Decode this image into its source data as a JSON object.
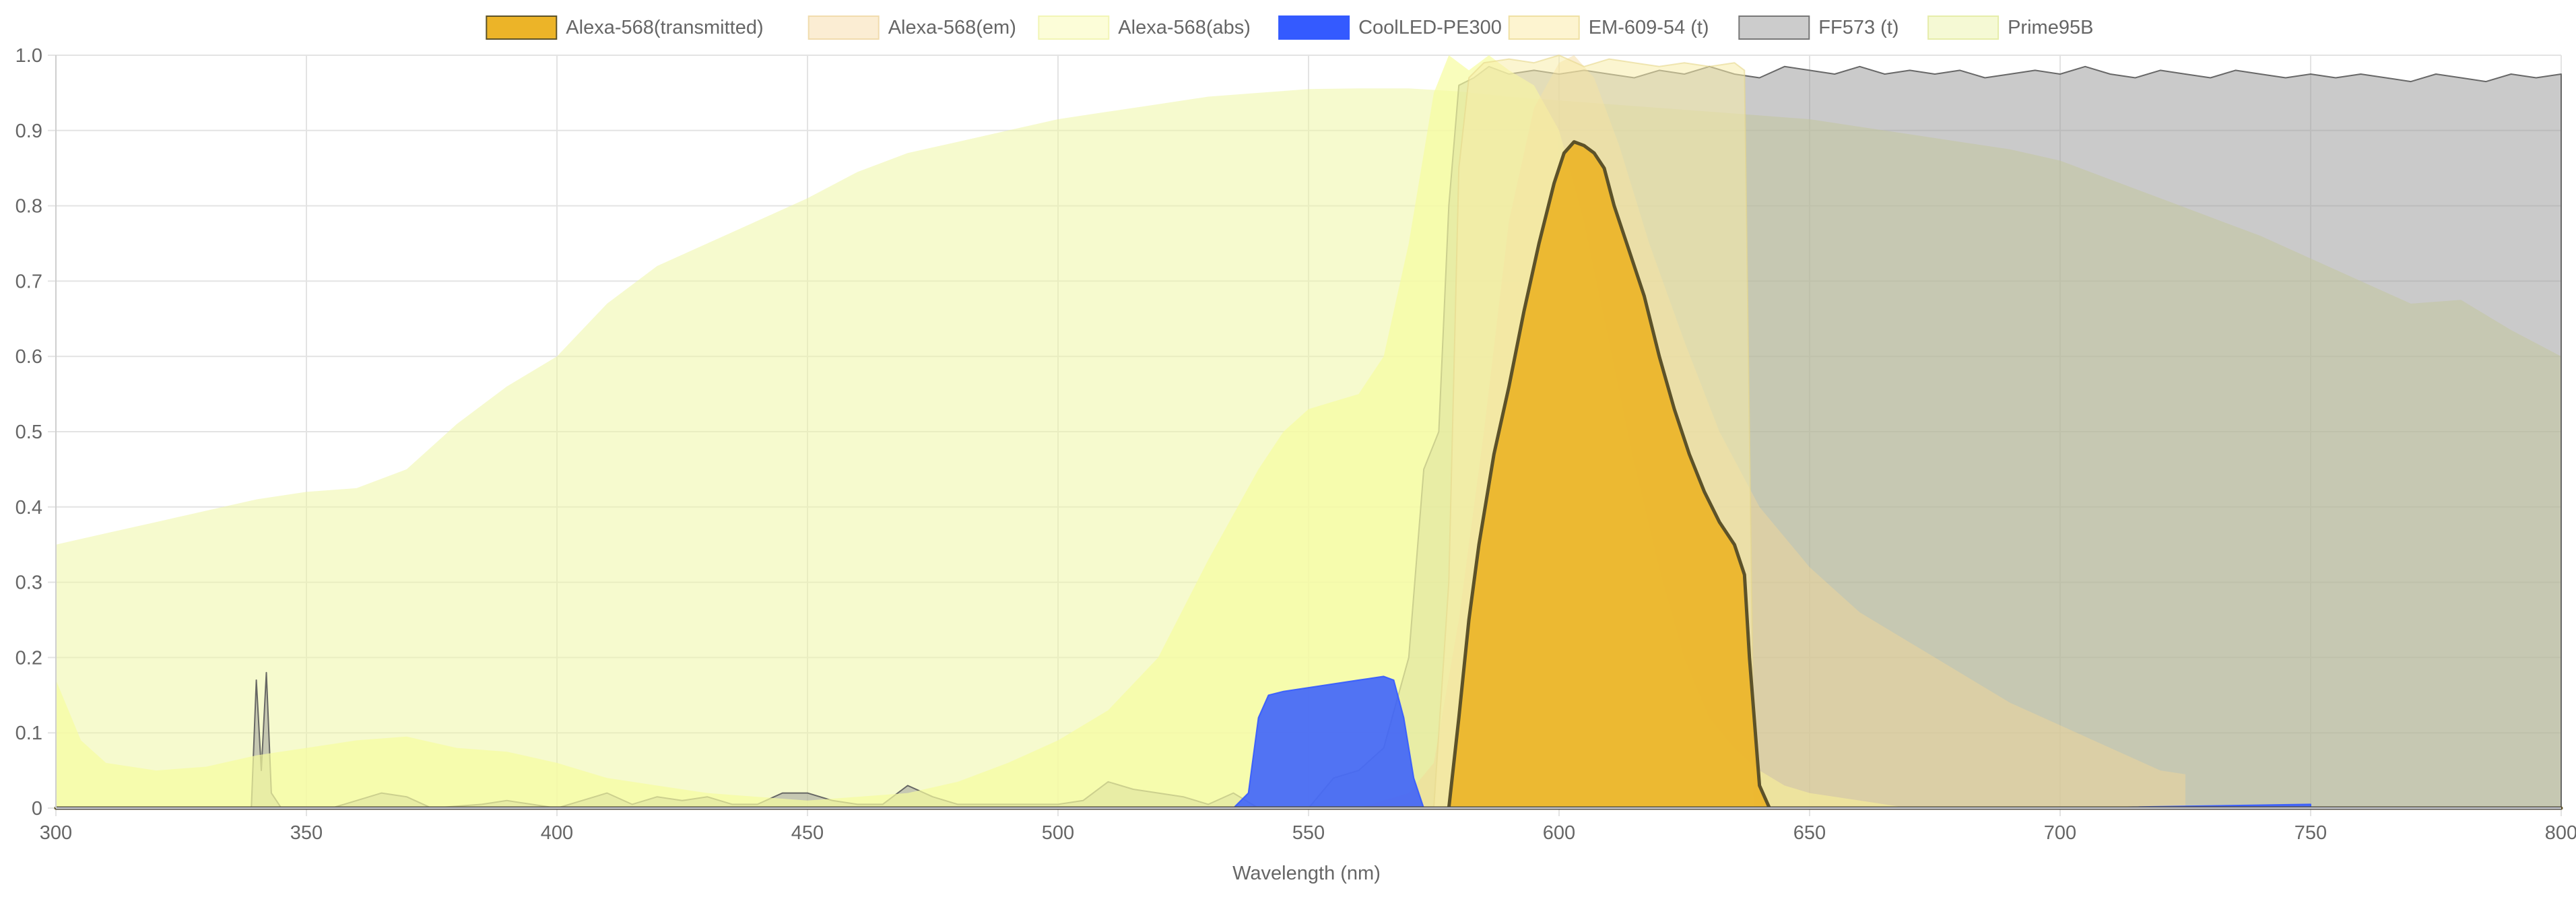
{
  "chart_data": {
    "type": "area",
    "xlabel": "Wavelength (nm)",
    "ylabel": "",
    "xlim": [
      300,
      800
    ],
    "ylim": [
      0,
      1
    ],
    "x_ticks": [
      "300",
      "350",
      "400",
      "450",
      "500",
      "550",
      "600",
      "650",
      "700",
      "750",
      "800"
    ],
    "y_ticks": [
      "0",
      "0.1",
      "0.2",
      "0.3",
      "0.4",
      "0.5",
      "0.6",
      "0.7",
      "0.8",
      "0.9",
      "1.0"
    ],
    "grid": true,
    "legend_position": "top",
    "series": [
      {
        "name": "Prime95B",
        "fill": "rgba(238,246,166,0.55)",
        "stroke": "none",
        "points": [
          [
            300,
            0.35
          ],
          [
            310,
            0.365
          ],
          [
            320,
            0.38
          ],
          [
            330,
            0.395
          ],
          [
            340,
            0.41
          ],
          [
            350,
            0.42
          ],
          [
            360,
            0.425
          ],
          [
            370,
            0.45
          ],
          [
            380,
            0.51
          ],
          [
            390,
            0.56
          ],
          [
            400,
            0.6
          ],
          [
            410,
            0.67
          ],
          [
            420,
            0.72
          ],
          [
            430,
            0.75
          ],
          [
            440,
            0.78
          ],
          [
            450,
            0.81
          ],
          [
            460,
            0.845
          ],
          [
            470,
            0.87
          ],
          [
            480,
            0.885
          ],
          [
            490,
            0.9
          ],
          [
            500,
            0.915
          ],
          [
            510,
            0.925
          ],
          [
            520,
            0.935
          ],
          [
            530,
            0.945
          ],
          [
            540,
            0.95
          ],
          [
            550,
            0.955
          ],
          [
            560,
            0.956
          ],
          [
            570,
            0.956
          ],
          [
            580,
            0.952
          ],
          [
            590,
            0.945
          ],
          [
            600,
            0.94
          ],
          [
            610,
            0.935
          ],
          [
            620,
            0.93
          ],
          [
            630,
            0.925
          ],
          [
            640,
            0.92
          ],
          [
            650,
            0.915
          ],
          [
            660,
            0.905
          ],
          [
            670,
            0.895
          ],
          [
            680,
            0.885
          ],
          [
            690,
            0.875
          ],
          [
            700,
            0.86
          ],
          [
            710,
            0.835
          ],
          [
            720,
            0.81
          ],
          [
            730,
            0.785
          ],
          [
            740,
            0.76
          ],
          [
            750,
            0.73
          ],
          [
            760,
            0.7
          ],
          [
            770,
            0.67
          ],
          [
            780,
            0.675
          ],
          [
            790,
            0.635
          ],
          [
            800,
            0.6
          ]
        ]
      },
      {
        "name": "FF573 (t)",
        "fill": "rgba(150,150,150,0.5)",
        "stroke": "rgba(90,90,90,0.9)",
        "points": [
          [
            300,
            0
          ],
          [
            339,
            0
          ],
          [
            340,
            0.17
          ],
          [
            341,
            0.05
          ],
          [
            342,
            0.18
          ],
          [
            343,
            0.02
          ],
          [
            345,
            0
          ],
          [
            355,
            0
          ],
          [
            360,
            0.01
          ],
          [
            365,
            0.02
          ],
          [
            370,
            0.015
          ],
          [
            375,
            0
          ],
          [
            385,
            0.005
          ],
          [
            390,
            0.01
          ],
          [
            395,
            0.005
          ],
          [
            400,
            0
          ],
          [
            405,
            0.01
          ],
          [
            410,
            0.02
          ],
          [
            415,
            0.005
          ],
          [
            420,
            0.015
          ],
          [
            425,
            0.01
          ],
          [
            430,
            0.015
          ],
          [
            435,
            0.005
          ],
          [
            440,
            0.005
          ],
          [
            445,
            0.02
          ],
          [
            450,
            0.02
          ],
          [
            455,
            0.01
          ],
          [
            460,
            0.005
          ],
          [
            465,
            0.005
          ],
          [
            470,
            0.03
          ],
          [
            475,
            0.015
          ],
          [
            480,
            0.005
          ],
          [
            490,
            0.005
          ],
          [
            500,
            0.005
          ],
          [
            505,
            0.01
          ],
          [
            510,
            0.035
          ],
          [
            515,
            0.025
          ],
          [
            520,
            0.02
          ],
          [
            525,
            0.015
          ],
          [
            530,
            0.005
          ],
          [
            535,
            0.02
          ],
          [
            540,
            0
          ],
          [
            550,
            0
          ],
          [
            555,
            0.04
          ],
          [
            560,
            0.05
          ],
          [
            565,
            0.08
          ],
          [
            570,
            0.2
          ],
          [
            573,
            0.45
          ],
          [
            576,
            0.5
          ],
          [
            578,
            0.8
          ],
          [
            580,
            0.96
          ],
          [
            583,
            0.97
          ],
          [
            586,
            0.985
          ],
          [
            590,
            0.975
          ],
          [
            595,
            0.98
          ],
          [
            600,
            0.975
          ],
          [
            605,
            0.98
          ],
          [
            610,
            0.975
          ],
          [
            615,
            0.97
          ],
          [
            620,
            0.98
          ],
          [
            625,
            0.975
          ],
          [
            630,
            0.985
          ],
          [
            635,
            0.975
          ],
          [
            640,
            0.97
          ],
          [
            645,
            0.985
          ],
          [
            650,
            0.98
          ],
          [
            655,
            0.975
          ],
          [
            660,
            0.985
          ],
          [
            665,
            0.975
          ],
          [
            670,
            0.98
          ],
          [
            675,
            0.975
          ],
          [
            680,
            0.98
          ],
          [
            685,
            0.97
          ],
          [
            690,
            0.975
          ],
          [
            695,
            0.98
          ],
          [
            700,
            0.975
          ],
          [
            705,
            0.985
          ],
          [
            710,
            0.975
          ],
          [
            715,
            0.97
          ],
          [
            720,
            0.98
          ],
          [
            725,
            0.975
          ],
          [
            730,
            0.97
          ],
          [
            735,
            0.98
          ],
          [
            740,
            0.975
          ],
          [
            745,
            0.97
          ],
          [
            750,
            0.975
          ],
          [
            755,
            0.97
          ],
          [
            760,
            0.975
          ],
          [
            765,
            0.97
          ],
          [
            770,
            0.965
          ],
          [
            775,
            0.975
          ],
          [
            780,
            0.97
          ],
          [
            785,
            0.965
          ],
          [
            790,
            0.975
          ],
          [
            795,
            0.97
          ],
          [
            800,
            0.975
          ]
        ]
      },
      {
        "name": "Alexa-568(abs)",
        "fill": "rgba(247,252,160,0.7)",
        "stroke": "none",
        "points": [
          [
            300,
            0.17
          ],
          [
            305,
            0.09
          ],
          [
            310,
            0.06
          ],
          [
            320,
            0.05
          ],
          [
            330,
            0.055
          ],
          [
            340,
            0.07
          ],
          [
            350,
            0.08
          ],
          [
            360,
            0.09
          ],
          [
            370,
            0.095
          ],
          [
            380,
            0.08
          ],
          [
            390,
            0.075
          ],
          [
            400,
            0.06
          ],
          [
            410,
            0.04
          ],
          [
            420,
            0.03
          ],
          [
            430,
            0.02
          ],
          [
            440,
            0.015
          ],
          [
            450,
            0.01
          ],
          [
            460,
            0.015
          ],
          [
            470,
            0.02
          ],
          [
            480,
            0.035
          ],
          [
            490,
            0.06
          ],
          [
            500,
            0.09
          ],
          [
            510,
            0.13
          ],
          [
            520,
            0.2
          ],
          [
            530,
            0.33
          ],
          [
            540,
            0.45
          ],
          [
            545,
            0.5
          ],
          [
            550,
            0.53
          ],
          [
            555,
            0.54
          ],
          [
            560,
            0.55
          ],
          [
            565,
            0.6
          ],
          [
            570,
            0.75
          ],
          [
            575,
            0.95
          ],
          [
            578,
            1.0
          ],
          [
            582,
            0.98
          ],
          [
            586,
            1.0
          ],
          [
            590,
            0.98
          ],
          [
            595,
            0.96
          ],
          [
            600,
            0.9
          ],
          [
            605,
            0.78
          ],
          [
            610,
            0.62
          ],
          [
            615,
            0.46
          ],
          [
            620,
            0.32
          ],
          [
            625,
            0.2
          ],
          [
            630,
            0.12
          ],
          [
            635,
            0.08
          ],
          [
            640,
            0.05
          ],
          [
            645,
            0.03
          ],
          [
            650,
            0.02
          ],
          [
            660,
            0.01
          ],
          [
            670,
            0
          ]
        ]
      },
      {
        "name": "Alexa-568(em)",
        "fill": "rgba(244,214,150,0.45)",
        "stroke": "none",
        "points": [
          [
            560,
            0
          ],
          [
            570,
            0.02
          ],
          [
            575,
            0.06
          ],
          [
            580,
            0.25
          ],
          [
            585,
            0.5
          ],
          [
            590,
            0.78
          ],
          [
            595,
            0.93
          ],
          [
            600,
            0.99
          ],
          [
            603,
            1.0
          ],
          [
            607,
            0.97
          ],
          [
            612,
            0.88
          ],
          [
            618,
            0.75
          ],
          [
            625,
            0.62
          ],
          [
            632,
            0.5
          ],
          [
            640,
            0.4
          ],
          [
            650,
            0.32
          ],
          [
            660,
            0.26
          ],
          [
            670,
            0.22
          ],
          [
            680,
            0.18
          ],
          [
            690,
            0.14
          ],
          [
            700,
            0.11
          ],
          [
            710,
            0.08
          ],
          [
            720,
            0.05
          ],
          [
            725,
            0.045
          ],
          [
            725,
            0
          ]
        ]
      },
      {
        "name": "EM-609-54 (t)",
        "fill": "rgba(248,236,170,0.55)",
        "stroke": "rgba(230,215,140,0.6)",
        "points": [
          [
            575,
            0
          ],
          [
            578,
            0.3
          ],
          [
            580,
            0.85
          ],
          [
            582,
            0.97
          ],
          [
            585,
            0.99
          ],
          [
            590,
            0.995
          ],
          [
            595,
            0.99
          ],
          [
            600,
            1.0
          ],
          [
            605,
            0.985
          ],
          [
            610,
            0.995
          ],
          [
            615,
            0.99
          ],
          [
            620,
            0.985
          ],
          [
            625,
            0.99
          ],
          [
            630,
            0.985
          ],
          [
            635,
            0.99
          ],
          [
            637,
            0.98
          ],
          [
            638,
            0.5
          ],
          [
            639,
            0
          ]
        ]
      },
      {
        "name": "CoolLED-PE300",
        "fill": "rgba(52,90,255,0.85)",
        "stroke": "rgba(52,90,255,0.9)",
        "points": [
          [
            535,
            0
          ],
          [
            538,
            0.02
          ],
          [
            540,
            0.12
          ],
          [
            542,
            0.15
          ],
          [
            545,
            0.155
          ],
          [
            550,
            0.16
          ],
          [
            555,
            0.165
          ],
          [
            560,
            0.17
          ],
          [
            565,
            0.175
          ],
          [
            567,
            0.17
          ],
          [
            569,
            0.12
          ],
          [
            571,
            0.04
          ],
          [
            573,
            0
          ],
          [
            700,
            0
          ],
          [
            750,
            0.005
          ],
          [
            750,
            0
          ]
        ]
      },
      {
        "name": "Alexa-568(transmitted)",
        "fill": "rgba(236,180,40,0.92)",
        "stroke": "#5c5229",
        "points": [
          [
            300,
            0
          ],
          [
            578,
            0
          ],
          [
            580,
            0.12
          ],
          [
            582,
            0.25
          ],
          [
            584,
            0.35
          ],
          [
            587,
            0.47
          ],
          [
            590,
            0.56
          ],
          [
            593,
            0.66
          ],
          [
            596,
            0.75
          ],
          [
            599,
            0.83
          ],
          [
            601,
            0.87
          ],
          [
            603,
            0.885
          ],
          [
            605,
            0.88
          ],
          [
            607,
            0.87
          ],
          [
            609,
            0.85
          ],
          [
            611,
            0.8
          ],
          [
            614,
            0.74
          ],
          [
            617,
            0.68
          ],
          [
            620,
            0.6
          ],
          [
            623,
            0.53
          ],
          [
            626,
            0.47
          ],
          [
            629,
            0.42
          ],
          [
            632,
            0.38
          ],
          [
            635,
            0.35
          ],
          [
            637,
            0.31
          ],
          [
            638,
            0.2
          ],
          [
            640,
            0.03
          ],
          [
            642,
            0
          ],
          [
            800,
            0
          ]
        ]
      }
    ]
  }
}
